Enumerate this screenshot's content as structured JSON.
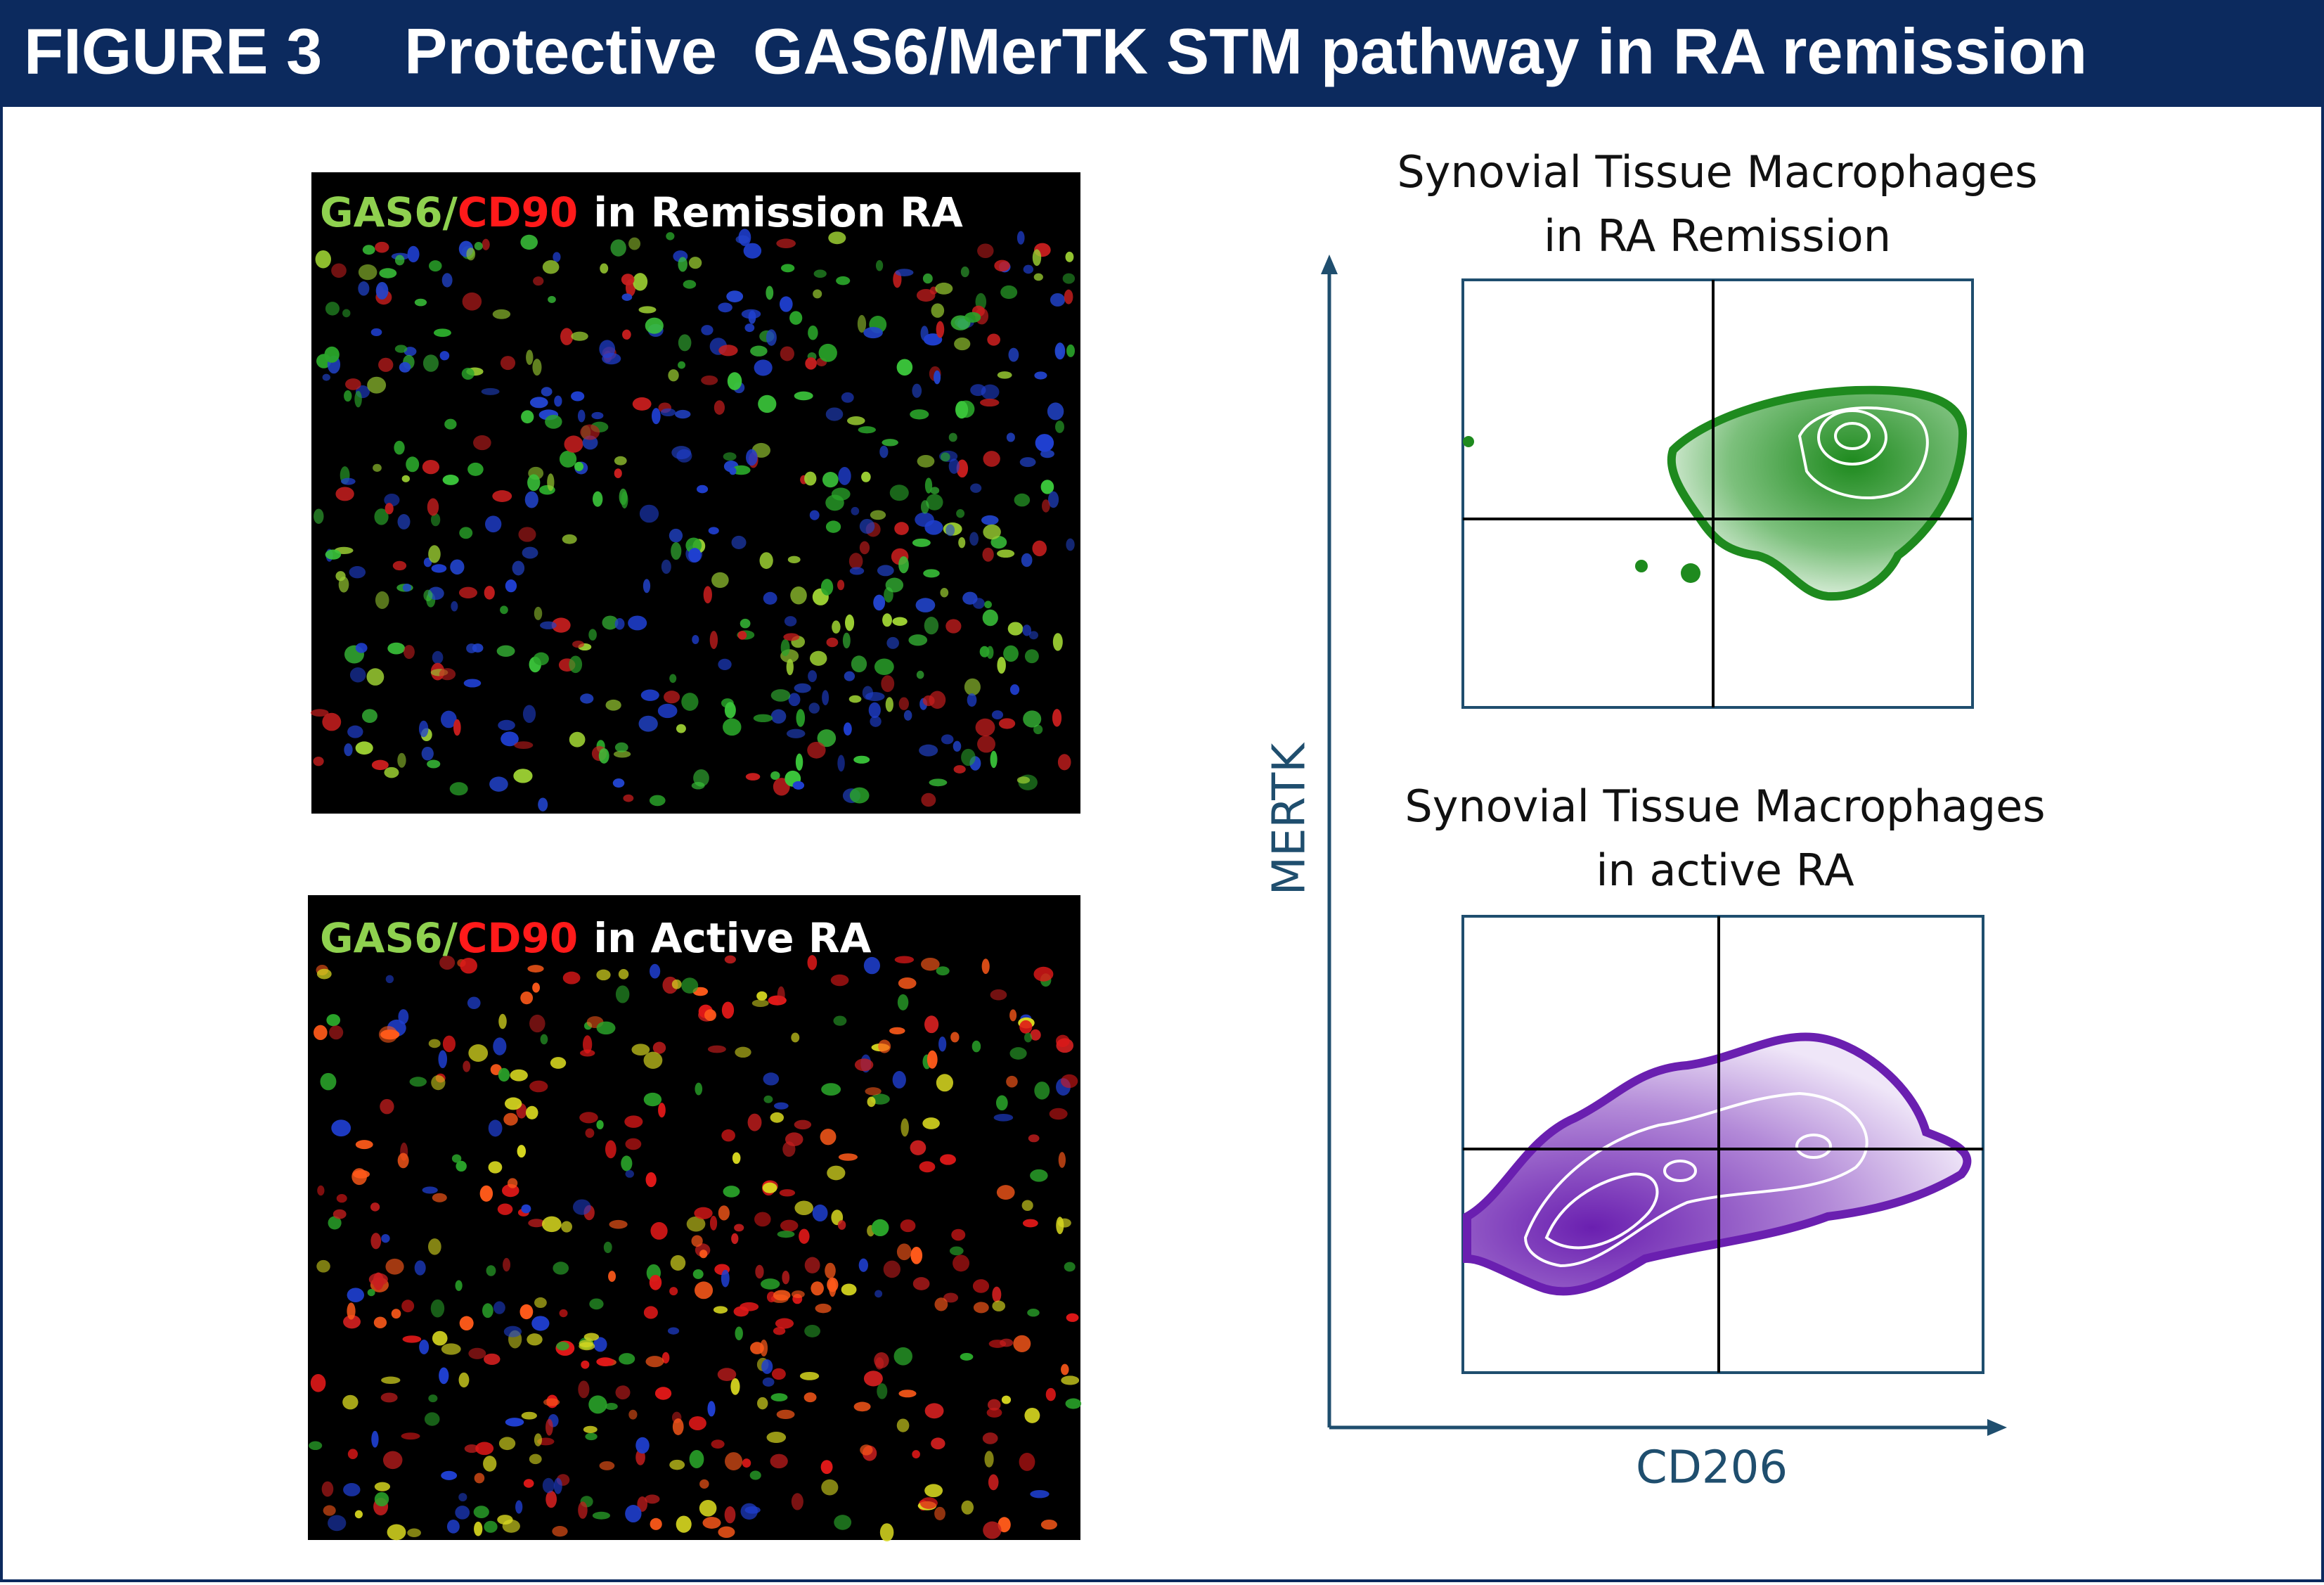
{
  "header": {
    "label": "FIGURE 3",
    "title": "Protective  GAS6/MerTK STM pathway in RA remission"
  },
  "images": [
    {
      "label_green": "GAS6/",
      "label_red": "CD90",
      "label_white": "in Remission RA"
    },
    {
      "label_green": "GAS6/",
      "label_red": "CD90",
      "label_white": "in Active RA"
    }
  ],
  "plots": [
    {
      "title_line1": "Synovial Tissue Macrophages",
      "title_line2": "in RA Remission"
    },
    {
      "title_line1": "Synovial Tissue Macrophages",
      "title_line2": "in active RA"
    }
  ],
  "axes": {
    "y_label": "MERTK",
    "x_label": "CD206"
  }
}
